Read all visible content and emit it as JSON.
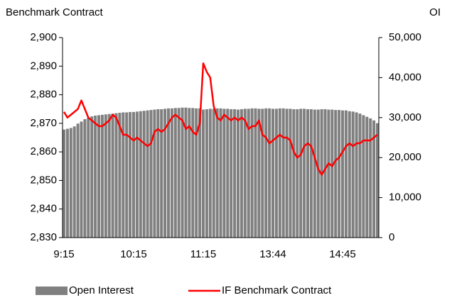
{
  "chart_data": {
    "type": "combo",
    "title": "Benchmark Contract",
    "y2_title": "OI",
    "categories": [
      "9:15",
      null,
      null,
      null,
      null,
      null,
      null,
      null,
      null,
      null,
      null,
      null,
      null,
      null,
      null,
      null,
      null,
      null,
      null,
      null,
      "10:15",
      null,
      null,
      null,
      null,
      null,
      null,
      null,
      null,
      null,
      null,
      null,
      null,
      null,
      null,
      null,
      null,
      null,
      null,
      null,
      "11:15",
      null,
      null,
      null,
      null,
      null,
      null,
      null,
      null,
      null,
      null,
      null,
      null,
      null,
      null,
      null,
      null,
      null,
      null,
      null,
      "13:44",
      null,
      null,
      null,
      null,
      null,
      null,
      null,
      null,
      null,
      null,
      null,
      null,
      null,
      null,
      null,
      null,
      null,
      null,
      null,
      "14:45",
      null,
      null,
      null,
      null,
      null,
      null,
      null,
      null,
      null,
      null
    ],
    "series": [
      {
        "name": "Open Interest",
        "type": "bar",
        "axis": "y2",
        "color": "#808080",
        "values": [
          27000,
          27200,
          27400,
          27800,
          28500,
          29000,
          29600,
          30000,
          30300,
          30500,
          30600,
          30700,
          30800,
          30900,
          31000,
          31100,
          31200,
          31300,
          31300,
          31400,
          31400,
          31500,
          31600,
          31700,
          31800,
          31900,
          32000,
          32100,
          32100,
          32200,
          32300,
          32300,
          32400,
          32400,
          32500,
          32500,
          32400,
          32400,
          32300,
          32300,
          32000,
          32100,
          32200,
          32200,
          32300,
          32300,
          32200,
          32200,
          32100,
          32100,
          32000,
          32100,
          32200,
          32200,
          32300,
          32300,
          32200,
          32200,
          32300,
          32300,
          32200,
          32200,
          32300,
          32300,
          32200,
          32200,
          32100,
          32100,
          32200,
          32200,
          32100,
          32100,
          32000,
          32000,
          32100,
          32100,
          32000,
          32000,
          31900,
          31900,
          31800,
          31800,
          31600,
          31500,
          31300,
          31000,
          30600,
          30200,
          29800,
          29300,
          28600
        ]
      },
      {
        "name": "IF Benchmark Contract",
        "type": "line",
        "color": "#ff0000",
        "values": [
          2874,
          2872,
          2873,
          2874,
          2875,
          2878,
          2875,
          2872,
          2871,
          2870,
          2869,
          2869,
          2870,
          2871,
          2873,
          2872,
          2869,
          2866,
          2866,
          2865,
          2864,
          2865,
          2864,
          2863,
          2862,
          2863,
          2867,
          2868,
          2867,
          2868,
          2870,
          2872,
          2873,
          2872,
          2871,
          2868,
          2869,
          2867,
          2866,
          2870,
          2891,
          2888,
          2886,
          2876,
          2872,
          2871,
          2873,
          2872,
          2871,
          2872,
          2871,
          2872,
          2871,
          2868,
          2869,
          2869,
          2871,
          2866,
          2865,
          2863,
          2864,
          2865,
          2866,
          2865,
          2865,
          2864,
          2860,
          2858,
          2859,
          2862,
          2863,
          2862,
          2858,
          2854,
          2852,
          2854,
          2856,
          2855,
          2857,
          2858,
          2860,
          2862,
          2863,
          2862,
          2863,
          2863,
          2864,
          2864,
          2864,
          2865,
          2866
        ]
      }
    ],
    "ylim": [
      2830,
      2900
    ],
    "yticks": [
      {
        "value": 2830,
        "label": "2,830"
      },
      {
        "value": 2840,
        "label": "2,840"
      },
      {
        "value": 2850,
        "label": "2,850"
      },
      {
        "value": 2860,
        "label": "2,860"
      },
      {
        "value": 2870,
        "label": "2,870"
      },
      {
        "value": 2880,
        "label": "2,880"
      },
      {
        "value": 2890,
        "label": "2,890"
      },
      {
        "value": 2900,
        "label": "2,900"
      }
    ],
    "y2lim": [
      0,
      50000
    ],
    "y2ticks": [
      0,
      {
        "value": 10000,
        "label": "10,000"
      },
      {
        "value": 20000,
        "label": "20,000"
      },
      {
        "value": 30000,
        "label": "30,000"
      },
      {
        "value": 40000,
        "label": "40,000"
      },
      {
        "value": 50000,
        "label": "50,000"
      }
    ],
    "legend": "bottom"
  }
}
